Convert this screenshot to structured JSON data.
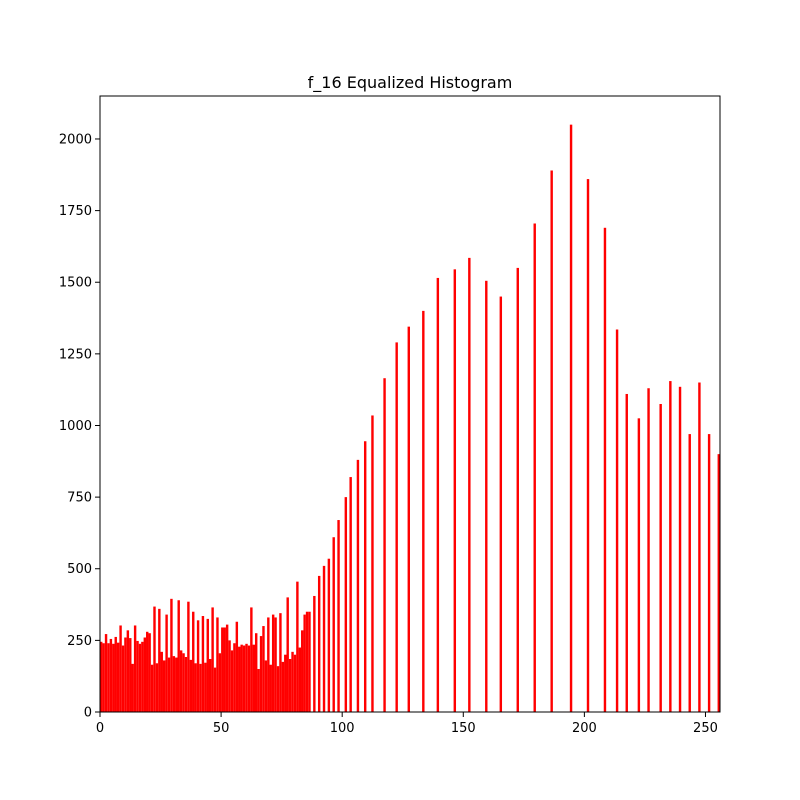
{
  "chart_data": {
    "type": "bar",
    "title": "f_16 Equalized Histogram",
    "xlabel": "",
    "ylabel": "",
    "xlim": [
      0,
      256
    ],
    "ylim": [
      0,
      2150
    ],
    "grid": false,
    "bar_color": "#ff0000",
    "xticks": [
      0,
      50,
      100,
      150,
      200,
      250
    ],
    "yticks": [
      0,
      250,
      500,
      750,
      1000,
      1250,
      1500,
      1750,
      2000
    ],
    "xtick_labels": [
      "0",
      "50",
      "100",
      "150",
      "200",
      "250"
    ],
    "ytick_labels": [
      "0",
      "250",
      "500",
      "750",
      "1000",
      "1250",
      "1500",
      "1750",
      "2000"
    ],
    "bins": [
      [
        0,
        245
      ],
      [
        1,
        240
      ],
      [
        2,
        272
      ],
      [
        3,
        240
      ],
      [
        4,
        255
      ],
      [
        5,
        238
      ],
      [
        6,
        262
      ],
      [
        7,
        242
      ],
      [
        8,
        302
      ],
      [
        9,
        232
      ],
      [
        10,
        260
      ],
      [
        11,
        285
      ],
      [
        12,
        258
      ],
      [
        13,
        168
      ],
      [
        14,
        302
      ],
      [
        15,
        248
      ],
      [
        16,
        238
      ],
      [
        17,
        245
      ],
      [
        18,
        260
      ],
      [
        19,
        280
      ],
      [
        20,
        275
      ],
      [
        21,
        165
      ],
      [
        22,
        368
      ],
      [
        23,
        170
      ],
      [
        24,
        360
      ],
      [
        25,
        210
      ],
      [
        26,
        180
      ],
      [
        27,
        340
      ],
      [
        28,
        190
      ],
      [
        29,
        395
      ],
      [
        30,
        195
      ],
      [
        31,
        190
      ],
      [
        32,
        390
      ],
      [
        33,
        215
      ],
      [
        34,
        205
      ],
      [
        35,
        192
      ],
      [
        36,
        385
      ],
      [
        37,
        182
      ],
      [
        38,
        350
      ],
      [
        39,
        170
      ],
      [
        40,
        320
      ],
      [
        41,
        168
      ],
      [
        42,
        335
      ],
      [
        43,
        172
      ],
      [
        44,
        325
      ],
      [
        45,
        185
      ],
      [
        46,
        365
      ],
      [
        47,
        155
      ],
      [
        48,
        330
      ],
      [
        49,
        205
      ],
      [
        50,
        295
      ],
      [
        51,
        295
      ],
      [
        52,
        305
      ],
      [
        53,
        250
      ],
      [
        54,
        215
      ],
      [
        55,
        240
      ],
      [
        56,
        315
      ],
      [
        57,
        228
      ],
      [
        58,
        235
      ],
      [
        59,
        232
      ],
      [
        60,
        238
      ],
      [
        61,
        232
      ],
      [
        62,
        365
      ],
      [
        63,
        235
      ],
      [
        64,
        275
      ],
      [
        65,
        150
      ],
      [
        66,
        265
      ],
      [
        67,
        300
      ],
      [
        68,
        180
      ],
      [
        69,
        330
      ],
      [
        70,
        165
      ],
      [
        71,
        340
      ],
      [
        72,
        330
      ],
      [
        73,
        160
      ],
      [
        74,
        345
      ],
      [
        75,
        175
      ],
      [
        76,
        200
      ],
      [
        77,
        400
      ],
      [
        78,
        185
      ],
      [
        79,
        210
      ],
      [
        80,
        200
      ],
      [
        81,
        455
      ],
      [
        82,
        225
      ],
      [
        83,
        285
      ],
      [
        84,
        340
      ],
      [
        85,
        350
      ],
      [
        86,
        350
      ],
      [
        88,
        405
      ],
      [
        90,
        475
      ],
      [
        92,
        510
      ],
      [
        94,
        535
      ],
      [
        96,
        610
      ],
      [
        98,
        670
      ],
      [
        101,
        750
      ],
      [
        103,
        820
      ],
      [
        106,
        880
      ],
      [
        109,
        945
      ],
      [
        112,
        1035
      ],
      [
        117,
        1165
      ],
      [
        122,
        1290
      ],
      [
        127,
        1345
      ],
      [
        133,
        1400
      ],
      [
        139,
        1515
      ],
      [
        146,
        1545
      ],
      [
        152,
        1585
      ],
      [
        159,
        1505
      ],
      [
        165,
        1450
      ],
      [
        172,
        1550
      ],
      [
        179,
        1705
      ],
      [
        186,
        1890
      ],
      [
        194,
        2050
      ],
      [
        201,
        1860
      ],
      [
        208,
        1690
      ],
      [
        213,
        1335
      ],
      [
        217,
        1110
      ],
      [
        222,
        1025
      ],
      [
        226,
        1130
      ],
      [
        231,
        1075
      ],
      [
        235,
        1155
      ],
      [
        239,
        1135
      ],
      [
        243,
        970
      ],
      [
        247,
        1150
      ],
      [
        251,
        970
      ],
      [
        255,
        900
      ]
    ]
  }
}
